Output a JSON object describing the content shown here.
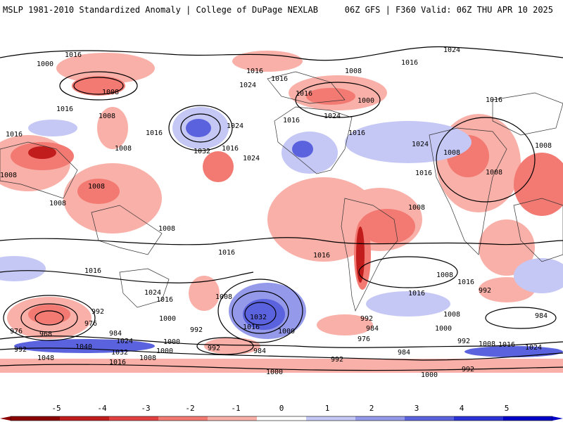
{
  "header": {
    "left_title": "MSLP 1981-2010 Standardized Anomaly | College of DuPage NEXLAB",
    "right_title": "06Z GFS | F360 Valid: 06Z THU APR 10 2025"
  },
  "colorbar": {
    "ticks": [
      "-5",
      "-4",
      "-3",
      "-2",
      "-1",
      "0",
      "1",
      "2",
      "3",
      "4",
      "5"
    ],
    "colors": [
      "#8b0000",
      "#c21d1d",
      "#e34141",
      "#f27a72",
      "#f9b0a8",
      "#ffffff",
      "#c5c8f5",
      "#9499ea",
      "#5b62de",
      "#2b33d6",
      "#0000c8"
    ]
  },
  "contour_labels": [
    "1016",
    "1000",
    "1008",
    "1016",
    "1008",
    "1024",
    "1008",
    "1016",
    "1016",
    "1024",
    "1016",
    "1032",
    "1016",
    "1024",
    "1024",
    "1016",
    "1016",
    "1016",
    "1024",
    "1016",
    "1008",
    "1008",
    "1024",
    "1016",
    "1008",
    "1008",
    "1008",
    "1008",
    "1008",
    "1000",
    "1008",
    "1016",
    "1008",
    "1016",
    "1016",
    "1024",
    "1016",
    "1000",
    "1008",
    "992",
    "976",
    "992",
    "1032",
    "1016",
    "1000",
    "1016",
    "1008",
    "984",
    "976",
    "968",
    "1024",
    "1000",
    "992",
    "984",
    "1040",
    "1032",
    "1008",
    "1016",
    "1048",
    "992",
    "992",
    "984",
    "984",
    "976",
    "992",
    "992",
    "984",
    "1000",
    "1000",
    "1000",
    "1008",
    "1016",
    "1024",
    "992",
    "1000",
    "992",
    "1008",
    "1016",
    "1016",
    "1016"
  ]
}
